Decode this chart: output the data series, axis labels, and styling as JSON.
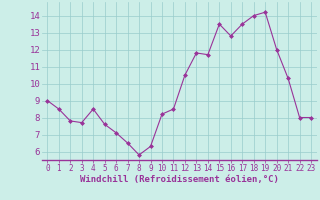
{
  "hours": [
    0,
    1,
    2,
    3,
    4,
    5,
    6,
    7,
    8,
    9,
    10,
    11,
    12,
    13,
    14,
    15,
    16,
    17,
    18,
    19,
    20,
    21,
    22,
    23
  ],
  "values": [
    9.0,
    8.5,
    7.8,
    7.7,
    8.5,
    7.6,
    7.1,
    6.5,
    5.8,
    6.3,
    8.2,
    8.5,
    10.5,
    11.8,
    11.7,
    13.5,
    12.8,
    13.5,
    14.0,
    14.2,
    12.0,
    10.3,
    8.0,
    8.0
  ],
  "line_color": "#993399",
  "marker": "D",
  "marker_size": 2.0,
  "bg_color": "#cceee8",
  "grid_color": "#99cccc",
  "xlabel": "Windchill (Refroidissement éolien,°C)",
  "xlabel_color": "#993399",
  "tick_color": "#993399",
  "ylim": [
    5.5,
    14.8
  ],
  "yticks": [
    6,
    7,
    8,
    9,
    10,
    11,
    12,
    13,
    14
  ],
  "xlim": [
    -0.5,
    23.5
  ],
  "xticks": [
    0,
    1,
    2,
    3,
    4,
    5,
    6,
    7,
    8,
    9,
    10,
    11,
    12,
    13,
    14,
    15,
    16,
    17,
    18,
    19,
    20,
    21,
    22,
    23
  ]
}
